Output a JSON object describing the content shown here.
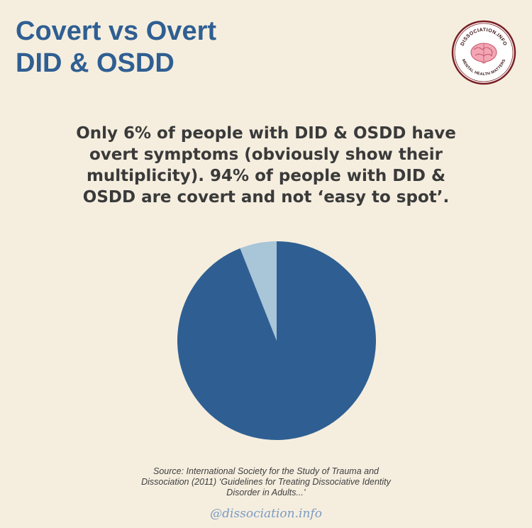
{
  "title": {
    "line1": "Covert vs Overt",
    "line2": "DID & OSDD"
  },
  "subtitle": "Only 6% of people with DID & OSDD have overt symptoms (obviously show their multiplicity). 94% of people with DID & OSDD are covert and not ‘easy to spot’.",
  "logo": {
    "top_text": "DISSOCIATION.INFO",
    "bottom_text": "MENTAL HEALTH MATTERS",
    "icon": "brain-icon"
  },
  "chart_data": {
    "type": "pie",
    "slices": [
      {
        "value": 94,
        "color": "#2f5f92"
      },
      {
        "value": 6,
        "color": "#a9c5d8"
      }
    ]
  },
  "source": {
    "line1": "Source: International Society for the Study of Trauma and",
    "line2": "Dissociation (2011) ‘Guidelines for Treating Dissociative Identity",
    "line3": "Disorder in Adults...’"
  },
  "handle": "@dissociation.info",
  "colors": {
    "background": "#f5eedf",
    "title": "#2f5f92",
    "accent_dark": "#7a1f24",
    "handle": "#7b9bc2"
  }
}
